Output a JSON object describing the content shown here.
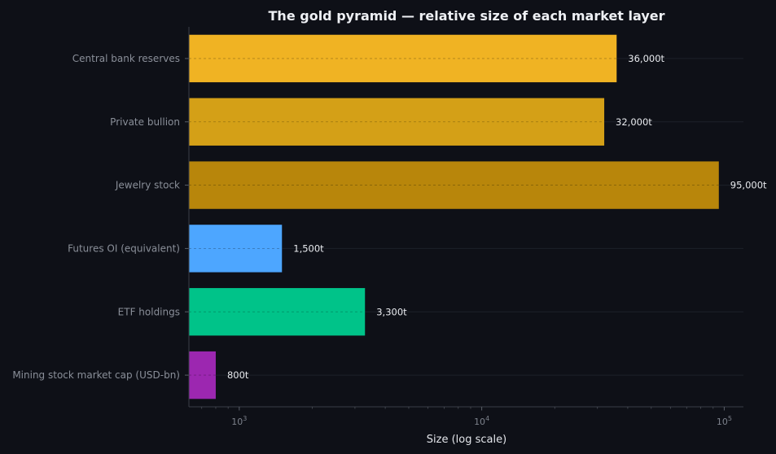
{
  "chart_data": {
    "type": "bar",
    "orientation": "horizontal",
    "title": "The gold pyramid — relative size of each market layer",
    "xlabel": "Size (log scale)",
    "ylabel": "",
    "x_scale": "log",
    "xlim": [
      620,
      120000
    ],
    "x_ticks": [
      {
        "value": 1000,
        "base": "10",
        "exp": "3"
      },
      {
        "value": 10000,
        "base": "10",
        "exp": "4"
      },
      {
        "value": 100000,
        "base": "10",
        "exp": "5"
      }
    ],
    "grid": "horizontal dashed",
    "categories": [
      "Central bank reserves",
      "Private bullion",
      "Jewelry stock",
      "Futures OI (equivalent)",
      "ETF holdings",
      "Mining stock market cap (USD-bn)"
    ],
    "values": [
      36000,
      32000,
      95000,
      1500,
      3300,
      800
    ],
    "value_labels": [
      "36,000t",
      "32,000t",
      "95,000t",
      "1,500t",
      "3,300t",
      "800t"
    ],
    "colors": [
      "#f0b323",
      "#d4a017",
      "#b8860b",
      "#4da6ff",
      "#00c389",
      "#9c27b0"
    ]
  }
}
